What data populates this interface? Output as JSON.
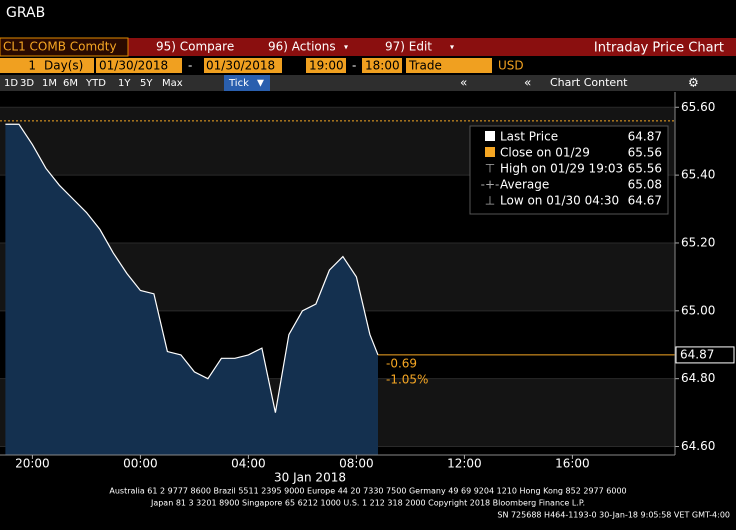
{
  "window_title": "GRAB",
  "toolbar": {
    "ticker": "CL1 COMB Comdty",
    "buttons": [
      "95) Compare",
      "96) Actions",
      "97) Edit"
    ],
    "title": "Intraday Price Chart"
  },
  "range_bar": {
    "count": "1",
    "unit": "Day(s)",
    "start_date": "01/30/2018",
    "end_date": "01/30/2018",
    "start_time": "19:00",
    "end_time": "18:00",
    "field": "Trade",
    "currency": "USD"
  },
  "periods": [
    "1D",
    "3D",
    "1M",
    "6M",
    "YTD",
    "1Y",
    "5Y",
    "Max",
    "Tick"
  ],
  "chart_content": "Chart Content",
  "chart_data": {
    "type": "line",
    "x": [
      -5,
      -4.5,
      -4,
      -3.5,
      -3,
      -2.5,
      -2,
      -1.5,
      -1,
      -0.5,
      0,
      0.5,
      1,
      1.5,
      2,
      2.5,
      3,
      3.5,
      4,
      4.5,
      5,
      5.5,
      6,
      6.5,
      7,
      7.5,
      8,
      8.5,
      8.8
    ],
    "series": [
      {
        "name": "Last Price",
        "color": "#ffffff",
        "area_color": "#14304f",
        "last": 64.87,
        "values": [
          65.55,
          65.55,
          65.49,
          65.42,
          65.37,
          65.33,
          65.29,
          65.24,
          65.17,
          65.11,
          65.06,
          65.05,
          64.88,
          64.87,
          64.82,
          64.8,
          64.86,
          64.86,
          64.87,
          64.89,
          64.7,
          64.93,
          65.0,
          65.02,
          65.12,
          65.16,
          65.1,
          64.93,
          64.87
        ]
      }
    ],
    "reference_line": {
      "name": "Close on 01/29",
      "value": 65.56,
      "color": "#f5a623"
    },
    "legend": [
      {
        "label": "High on 01/29 19:03",
        "value": "65.56"
      },
      {
        "label": "Average",
        "value": "65.08"
      },
      {
        "label": "Low on 01/30 04:30",
        "value": "64.67"
      }
    ],
    "change": "-0.69",
    "change_pct": "-1.05%",
    "date_label": "30 Jan 2018",
    "xlim": [
      -5.2,
      19.8
    ],
    "xticks": [
      {
        "value": -4,
        "label": "20:00"
      },
      {
        "value": 0,
        "label": "00:00"
      },
      {
        "value": 4,
        "label": "04:00"
      },
      {
        "value": 8,
        "label": "08:00"
      },
      {
        "value": 12,
        "label": "12:00"
      },
      {
        "value": 16,
        "label": "16:00"
      }
    ],
    "ylim": [
      64.575,
      65.645
    ],
    "yticks": [
      {
        "value": 64.6,
        "label": "64.60"
      },
      {
        "value": 64.8,
        "label": "64.80"
      },
      {
        "value": 65,
        "label": "65.00"
      },
      {
        "value": 65.2,
        "label": "65.20"
      },
      {
        "value": 65.4,
        "label": "65.40"
      },
      {
        "value": 65.6,
        "label": "65.60"
      }
    ]
  },
  "footer": [
    "Australia 61 2 9777 8600 Brazil 5511 2395 9000 Europe 44 20 7330 7500 Germany 49 69 9204 1210 Hong Kong 852 2977 6000",
    "Japan 81 3 3201 8900       Singapore 65 6212 1000       U.S. 1 212 318 2000          Copyright 2018 Bloomberg Finance L.P.",
    "SN 725688 H464-1193-0 30-Jan-18  9:05:58 VET  GMT-4:00"
  ]
}
